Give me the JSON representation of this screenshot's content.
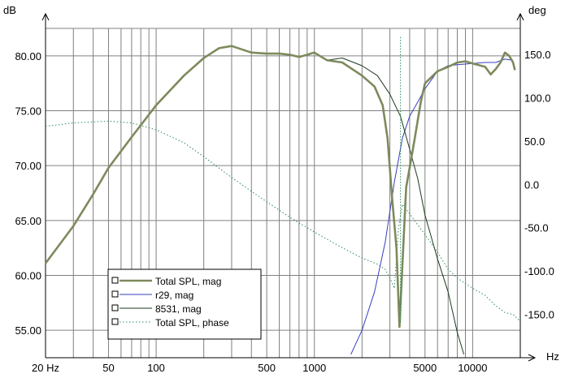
{
  "chart_data": {
    "type": "line",
    "x_scale": "log",
    "xlim": [
      20,
      20000
    ],
    "ylim_left": [
      52.5,
      82.5
    ],
    "ylim_right": [
      -200,
      180
    ],
    "grid": true,
    "legend_position": "bottom-left",
    "units": {
      "x": "Hz",
      "y_left": "dB",
      "y_right": "deg"
    },
    "x_tick_labels": [
      {
        "v": 20,
        "label": "20 Hz"
      },
      {
        "v": 50,
        "label": "50"
      },
      {
        "v": 100,
        "label": "100"
      },
      {
        "v": 500,
        "label": "500"
      },
      {
        "v": 1000,
        "label": "1000"
      },
      {
        "v": 5000,
        "label": "5000"
      },
      {
        "v": 10000,
        "label": "10000"
      }
    ],
    "y_left_ticks": [
      {
        "v": 80,
        "label": "80.00"
      },
      {
        "v": 75,
        "label": "75.00"
      },
      {
        "v": 70,
        "label": "70.00"
      },
      {
        "v": 65,
        "label": "65.00"
      },
      {
        "v": 60,
        "label": "60.00"
      },
      {
        "v": 55,
        "label": "55.00"
      }
    ],
    "y_right_ticks": [
      {
        "v": 150,
        "label": "150.0"
      },
      {
        "v": 100,
        "label": "100.0"
      },
      {
        "v": 50,
        "label": "50.0"
      },
      {
        "v": 0,
        "label": "0.0"
      },
      {
        "v": -50,
        "label": "-50.0"
      },
      {
        "v": -100,
        "label": "-100.0"
      },
      {
        "v": -150,
        "label": "-150.0"
      }
    ],
    "series": [
      {
        "name": "Total SPL, mag",
        "axis": "left",
        "color": "#7d8a5c",
        "style": "thick",
        "points": [
          [
            20,
            61.1
          ],
          [
            30,
            64.5
          ],
          [
            40,
            67.4
          ],
          [
            50,
            69.8
          ],
          [
            70,
            72.6
          ],
          [
            100,
            75.5
          ],
          [
            150,
            78.2
          ],
          [
            200,
            79.8
          ],
          [
            250,
            80.7
          ],
          [
            300,
            80.9
          ],
          [
            400,
            80.3
          ],
          [
            500,
            80.2
          ],
          [
            600,
            80.2
          ],
          [
            700,
            80.1
          ],
          [
            800,
            79.9
          ],
          [
            900,
            80.1
          ],
          [
            1000,
            80.3
          ],
          [
            1200,
            79.6
          ],
          [
            1500,
            79.4
          ],
          [
            2000,
            78.2
          ],
          [
            2400,
            77.2
          ],
          [
            2700,
            75.5
          ],
          [
            2900,
            72.5
          ],
          [
            3100,
            67.0
          ],
          [
            3300,
            62.5
          ],
          [
            3450,
            55.3
          ],
          [
            3600,
            61.0
          ],
          [
            3800,
            68.0
          ],
          [
            4000,
            69.8
          ],
          [
            4300,
            72.4
          ],
          [
            4700,
            75.8
          ],
          [
            5000,
            77.5
          ],
          [
            6000,
            78.6
          ],
          [
            7000,
            79.0
          ],
          [
            8000,
            79.4
          ],
          [
            9000,
            79.5
          ],
          [
            10000,
            79.3
          ],
          [
            12000,
            79.0
          ],
          [
            13000,
            78.3
          ],
          [
            14000,
            78.8
          ],
          [
            15000,
            79.4
          ],
          [
            16000,
            80.3
          ],
          [
            17000,
            80.0
          ],
          [
            18000,
            79.4
          ],
          [
            18500,
            78.7
          ]
        ]
      },
      {
        "name": "r29, mag",
        "axis": "left",
        "color": "#3a3fbf",
        "style": "thin",
        "points": [
          [
            1700,
            52.8
          ],
          [
            2000,
            55.0
          ],
          [
            2400,
            58.5
          ],
          [
            2800,
            63.0
          ],
          [
            3200,
            68.5
          ],
          [
            3600,
            72.5
          ],
          [
            4000,
            74.5
          ],
          [
            4500,
            75.8
          ],
          [
            5000,
            77.0
          ],
          [
            6000,
            78.6
          ],
          [
            7000,
            79.1
          ],
          [
            8000,
            79.2
          ],
          [
            10000,
            79.3
          ],
          [
            12000,
            79.4
          ],
          [
            14000,
            79.4
          ],
          [
            16000,
            79.7
          ],
          [
            18000,
            79.6
          ]
        ]
      },
      {
        "name": "8531, mag",
        "axis": "left",
        "color": "#1e3a1e",
        "style": "thin",
        "points": [
          [
            1000,
            80.3
          ],
          [
            1200,
            79.6
          ],
          [
            1500,
            79.8
          ],
          [
            2000,
            79.1
          ],
          [
            2500,
            78.2
          ],
          [
            3000,
            76.5
          ],
          [
            3500,
            74.5
          ],
          [
            4000,
            71.5
          ],
          [
            4500,
            68.8
          ],
          [
            5000,
            65.5
          ],
          [
            6000,
            61.5
          ],
          [
            7000,
            58.5
          ],
          [
            8000,
            54.8
          ],
          [
            8800,
            52.8
          ]
        ]
      },
      {
        "name": "Total SPL, phase",
        "axis": "right",
        "color": "#2f8a5a",
        "style": "dotted",
        "points": [
          [
            20,
            67
          ],
          [
            30,
            71
          ],
          [
            50,
            73
          ],
          [
            70,
            71
          ],
          [
            100,
            63
          ],
          [
            150,
            48
          ],
          [
            200,
            32
          ],
          [
            300,
            8
          ],
          [
            400,
            -8
          ],
          [
            500,
            -20
          ],
          [
            700,
            -38
          ],
          [
            1000,
            -55
          ],
          [
            1500,
            -73
          ],
          [
            2000,
            -85
          ],
          [
            2500,
            -92
          ],
          [
            2800,
            -98
          ],
          [
            3000,
            -108
          ],
          [
            3200,
            -120
          ],
          [
            3400,
            -50
          ],
          [
            3600,
            -23
          ],
          [
            4000,
            -34
          ],
          [
            5000,
            -58
          ],
          [
            6000,
            -78
          ],
          [
            7000,
            -98
          ],
          [
            8000,
            -108
          ],
          [
            10000,
            -120
          ],
          [
            12000,
            -128
          ],
          [
            14000,
            -140
          ],
          [
            16000,
            -148
          ],
          [
            18000,
            -150
          ],
          [
            20000,
            -158
          ]
        ]
      }
    ],
    "annotations": [
      {
        "name": "phase-spike",
        "x": 3500,
        "y_top": 170,
        "y_bottom": -160,
        "color": "#2f8a5a"
      }
    ]
  }
}
